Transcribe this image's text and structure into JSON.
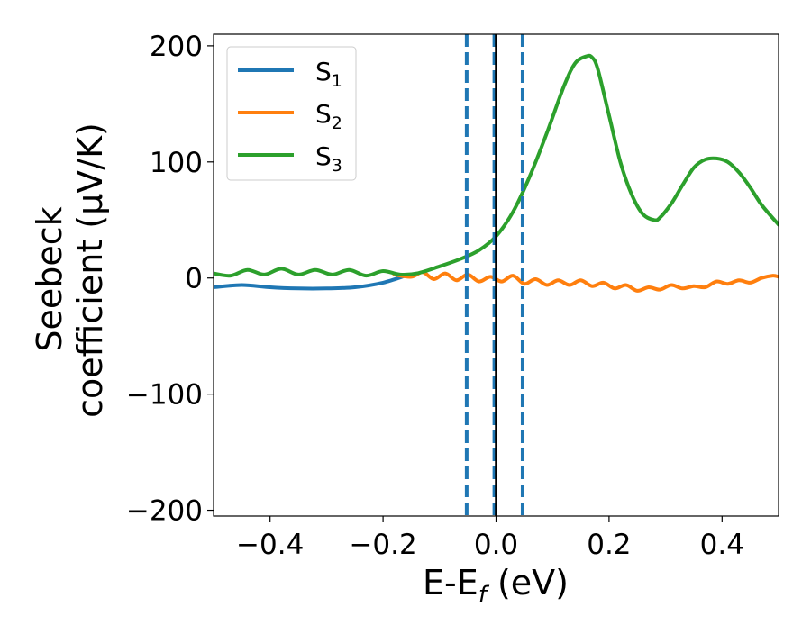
{
  "chart_data": {
    "type": "line",
    "xlabel": "E-E",
    "xlabel_sub": "f",
    "xlabel_unit": " (eV)",
    "ylabel_line1": "Seebeck",
    "ylabel_line2": "coefficient  (μV/K)",
    "xlim": [
      -0.5,
      0.5
    ],
    "ylim": [
      -205,
      210
    ],
    "xticks": [
      -0.4,
      -0.2,
      0.0,
      0.2,
      0.4
    ],
    "xtick_labels": [
      "−0.4",
      "−0.2",
      "0.0",
      "0.2",
      "0.4"
    ],
    "yticks": [
      -200,
      -100,
      0,
      100,
      200
    ],
    "ytick_labels": [
      "−200",
      "−100",
      "0",
      "100",
      "200"
    ],
    "grid": false,
    "legend_position": "top-left",
    "vlines": [
      {
        "x": -0.052,
        "style": "dashed",
        "color": "#1f77b4"
      },
      {
        "x": -0.003,
        "style": "dashed",
        "color": "#1f77b4"
      },
      {
        "x": 0.047,
        "style": "dashed",
        "color": "#1f77b4"
      },
      {
        "x": 0.0,
        "style": "solid",
        "color": "#000000"
      }
    ],
    "series": [
      {
        "name": "S",
        "name_sub": "1",
        "color": "#1f77b4",
        "x": [
          -0.5,
          -0.45,
          -0.4,
          -0.35,
          -0.3,
          -0.25,
          -0.2,
          -0.16
        ],
        "y": [
          -8,
          -6,
          -8,
          -9,
          -9,
          -8,
          -4,
          2
        ]
      },
      {
        "name": "S",
        "name_sub": "2",
        "color": "#ff7f0e",
        "x": [
          -0.18,
          -0.15,
          -0.13,
          -0.11,
          -0.09,
          -0.07,
          -0.05,
          -0.03,
          -0.01,
          0.01,
          0.03,
          0.05,
          0.07,
          0.09,
          0.11,
          0.13,
          0.15,
          0.17,
          0.19,
          0.21,
          0.23,
          0.25,
          0.27,
          0.29,
          0.31,
          0.33,
          0.35,
          0.37,
          0.39,
          0.41,
          0.43,
          0.45,
          0.47,
          0.49,
          0.5
        ],
        "y": [
          3,
          1,
          5,
          -1,
          4,
          -2,
          3,
          -3,
          1,
          -3,
          2,
          -5,
          -1,
          -6,
          -2,
          -6,
          -2,
          -7,
          -4,
          -9,
          -6,
          -11,
          -8,
          -10,
          -6,
          -9,
          -7,
          -8,
          -3,
          -5,
          -2,
          -4,
          0,
          2,
          1
        ]
      },
      {
        "name": "S",
        "name_sub": "3",
        "color": "#2ca02c",
        "x": [
          -0.5,
          -0.47,
          -0.44,
          -0.41,
          -0.38,
          -0.35,
          -0.32,
          -0.29,
          -0.26,
          -0.23,
          -0.2,
          -0.17,
          -0.14,
          -0.1,
          -0.06,
          -0.03,
          0.0,
          0.03,
          0.06,
          0.09,
          0.12,
          0.14,
          0.16,
          0.17,
          0.18,
          0.2,
          0.22,
          0.24,
          0.26,
          0.28,
          0.29,
          0.31,
          0.33,
          0.35,
          0.37,
          0.39,
          0.41,
          0.43,
          0.45,
          0.47,
          0.5
        ],
        "y": [
          4,
          2,
          7,
          3,
          8,
          3,
          7,
          3,
          7,
          2,
          6,
          3,
          4,
          10,
          17,
          24,
          36,
          57,
          88,
          125,
          165,
          185,
          191,
          190,
          180,
          140,
          100,
          72,
          55,
          50,
          52,
          64,
          80,
          95,
          102,
          103,
          100,
          91,
          78,
          63,
          46
        ]
      }
    ]
  }
}
